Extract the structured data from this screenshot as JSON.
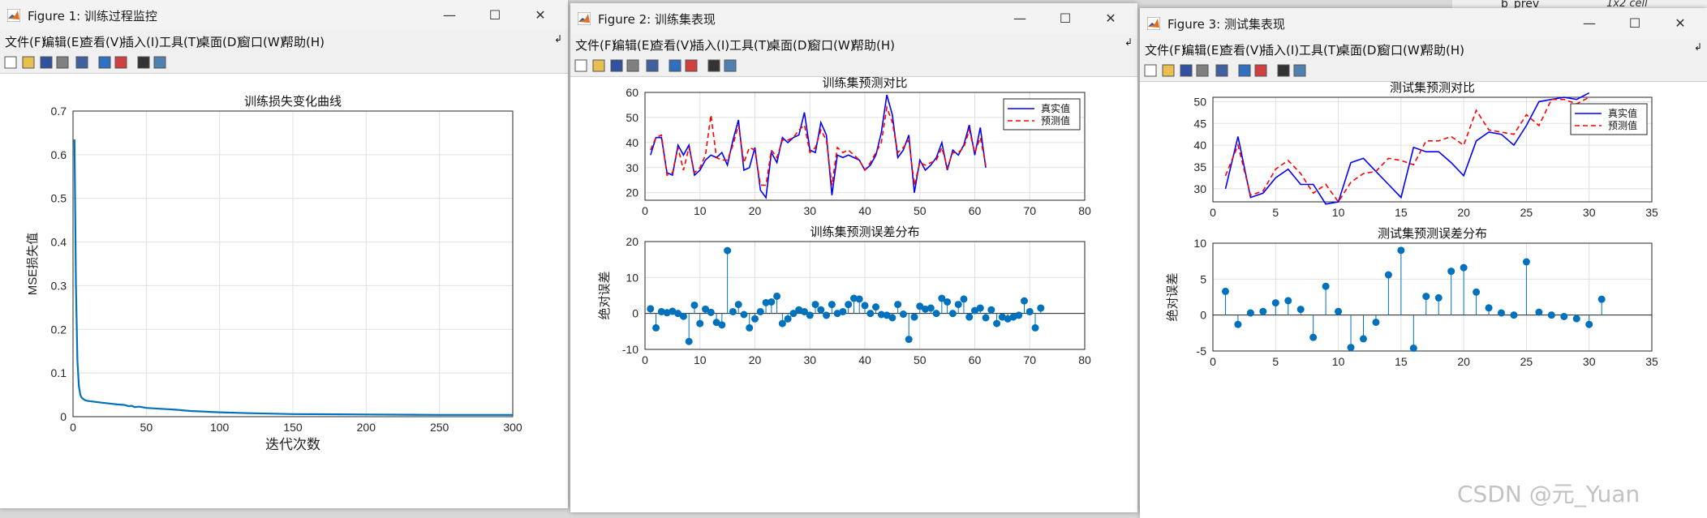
{
  "background": {
    "var_name": "b_prev",
    "var_value": "1x2 cell"
  },
  "watermark": "CSDN @元_Yuan",
  "menu": [
    "文件(F)",
    "编辑(E)",
    "查看(V)",
    "插入(I)",
    "工具(T)",
    "桌面(D)",
    "窗口(W)",
    "帮助(H)"
  ],
  "toolbar_icons": [
    "new-file-icon",
    "open-folder-icon",
    "save-icon",
    "print-icon",
    "link-icon",
    "colorbar-icon",
    "legend-icon",
    "pointer-icon",
    "property-icon"
  ],
  "colors": {
    "series_blue": "#0000ff",
    "series_red": "#ff0000",
    "stem": "#0072bd",
    "grid": "#e0e0e0"
  },
  "windows": [
    {
      "title": "Figure 1: 训练过程监控"
    },
    {
      "title": "Figure 2: 训练集表现"
    },
    {
      "title": "Figure 3: 测试集表现"
    }
  ],
  "chart_data": [
    {
      "type": "line",
      "title": "训练损失变化曲线",
      "xlabel": "迭代次数",
      "ylabel": "MSE损失值",
      "xlim": [
        0,
        300
      ],
      "ylim": [
        0,
        0.7
      ],
      "xticks": [
        0,
        50,
        100,
        150,
        200,
        250,
        300
      ],
      "yticks": [
        0,
        0.1,
        0.2,
        0.3,
        0.4,
        0.5,
        0.6,
        0.7
      ],
      "grid": true,
      "x": [
        1,
        2,
        3,
        4,
        5,
        6,
        8,
        10,
        15,
        20,
        25,
        30,
        35,
        38,
        40,
        42,
        45,
        50,
        60,
        70,
        80,
        100,
        120,
        150,
        200,
        250,
        300
      ],
      "y": [
        0.635,
        0.3,
        0.13,
        0.07,
        0.05,
        0.043,
        0.038,
        0.036,
        0.034,
        0.032,
        0.03,
        0.028,
        0.027,
        0.024,
        0.025,
        0.022,
        0.023,
        0.02,
        0.018,
        0.016,
        0.013,
        0.01,
        0.008,
        0.006,
        0.005,
        0.004,
        0.004
      ]
    },
    {
      "type": "line",
      "title": "训练集预测对比",
      "xlim": [
        0,
        80
      ],
      "ylim": [
        17,
        60
      ],
      "xticks": [
        0,
        10,
        20,
        30,
        40,
        50,
        60,
        70,
        80
      ],
      "yticks": [
        20,
        30,
        40,
        50,
        60
      ],
      "grid": true,
      "legend": "top-right",
      "series": [
        {
          "name": "真实值",
          "style": "solid",
          "values": [
            35,
            42,
            42,
            28,
            27,
            39,
            35,
            39,
            27,
            29,
            33,
            35,
            34,
            36,
            31,
            41,
            49,
            29,
            30,
            38,
            21,
            18,
            36,
            32,
            42,
            40,
            42,
            43,
            52,
            37,
            36,
            48,
            43,
            19,
            35,
            34,
            35,
            34,
            33,
            29,
            31,
            35,
            44,
            59,
            51,
            34,
            37,
            43,
            20,
            33,
            29,
            31,
            34,
            40,
            29,
            37,
            35,
            39,
            47,
            35,
            46,
            30
          ]
        },
        {
          "name": "预测值",
          "style": "dashed",
          "values": [
            37,
            42,
            43,
            27,
            28,
            38,
            29,
            38,
            28,
            30,
            35,
            51,
            34,
            33,
            33,
            39,
            47,
            32,
            38,
            37,
            23,
            23,
            37,
            34,
            41,
            41,
            42,
            45,
            47,
            36,
            38,
            45,
            41,
            23,
            38,
            36,
            37,
            35,
            33,
            29,
            32,
            36,
            40,
            54,
            48,
            36,
            38,
            41,
            23,
            32,
            31,
            32,
            33,
            38,
            30,
            36,
            36,
            38,
            45,
            36,
            42,
            31
          ]
        }
      ]
    },
    {
      "type": "stem",
      "title": "训练集预测误差分布",
      "ylabel": "绝对误差",
      "xlim": [
        0,
        80
      ],
      "ylim": [
        -10,
        20
      ],
      "xticks": [
        0,
        10,
        20,
        30,
        40,
        50,
        60,
        70,
        80
      ],
      "yticks": [
        -10,
        0,
        10,
        20
      ],
      "grid": true,
      "x": [
        1,
        2,
        3,
        4,
        5,
        6,
        7,
        8,
        9,
        10,
        11,
        12,
        13,
        14,
        15,
        16,
        17,
        18,
        19,
        20,
        21,
        22,
        23,
        24,
        25,
        26,
        27,
        28,
        29,
        30,
        31,
        32,
        33,
        34,
        35,
        36,
        37,
        38,
        39,
        40,
        41,
        42,
        43,
        44,
        45,
        46,
        47,
        48,
        49,
        50,
        51,
        52,
        53,
        54,
        55,
        56,
        57,
        58,
        59,
        60,
        61,
        62,
        63,
        64,
        65,
        66,
        67,
        68,
        69,
        70,
        71,
        72
      ],
      "values": [
        1.3,
        -4.0,
        0.5,
        0.2,
        0.6,
        0.0,
        -0.8,
        -7.8,
        2.3,
        -2.8,
        1.2,
        0.3,
        -2.5,
        -3.2,
        17.5,
        0.5,
        2.5,
        -0.3,
        -4.0,
        -1.5,
        0.5,
        3.0,
        3.2,
        4.8,
        -2.8,
        -1.5,
        0.0,
        1.0,
        0.5,
        -0.5,
        2.5,
        1.0,
        -0.5,
        2.5,
        0.0,
        0.5,
        2.5,
        4.2,
        4.0,
        2.2,
        0.0,
        1.8,
        -0.3,
        -0.5,
        -1.2,
        2.5,
        -0.2,
        -7.2,
        -1.0,
        2.0,
        1.2,
        1.5,
        0.0,
        4.2,
        3.2,
        0.0,
        2.5,
        4.0,
        -1.0,
        0.8,
        1.5,
        -1.2,
        1.0,
        -2.8,
        -1.0,
        -1.5,
        -1.0,
        -0.5,
        3.5,
        0.5,
        -4.0,
        1.5
      ]
    },
    {
      "type": "line",
      "title": "测试集预测对比",
      "xlim": [
        0,
        35
      ],
      "ylim": [
        27,
        51
      ],
      "xticks": [
        0,
        5,
        10,
        15,
        20,
        25,
        30,
        35
      ],
      "yticks": [
        30,
        35,
        40,
        45,
        50
      ],
      "grid": true,
      "legend": "top-right",
      "series": [
        {
          "name": "真实值",
          "style": "solid",
          "values": [
            30,
            42,
            28,
            29,
            32.5,
            34.5,
            31,
            31,
            26.5,
            27,
            36,
            37,
            34,
            31,
            28,
            39.5,
            38.5,
            38.5,
            36,
            33,
            41,
            43,
            42.5,
            40,
            44.5,
            50,
            50.5,
            51,
            50.5,
            52
          ]
        },
        {
          "name": "预测值",
          "style": "dashed",
          "values": [
            33,
            40,
            28.5,
            29.5,
            34.5,
            36.5,
            33.5,
            29,
            31,
            27,
            31.5,
            33.5,
            34,
            37,
            36.5,
            35.5,
            41,
            41,
            42,
            40,
            48,
            43.5,
            43,
            42.5,
            47,
            44.5,
            50.5,
            50.5,
            49.5,
            51
          ]
        }
      ]
    },
    {
      "type": "stem",
      "title": "测试集预测误差分布",
      "ylabel": "绝对误差",
      "xlim": [
        0,
        35
      ],
      "ylim": [
        -5,
        10
      ],
      "xticks": [
        0,
        5,
        10,
        15,
        20,
        25,
        30,
        35
      ],
      "yticks": [
        -5,
        0,
        5,
        10
      ],
      "grid": true,
      "x": [
        1,
        2,
        3,
        4,
        5,
        6,
        7,
        8,
        9,
        10,
        11,
        12,
        13,
        14,
        15,
        16,
        17,
        18,
        19,
        20,
        21,
        22,
        23,
        24,
        25,
        26,
        27,
        28,
        29,
        30,
        31
      ],
      "values": [
        3.3,
        -1.3,
        0.3,
        0.5,
        1.7,
        2.0,
        0.8,
        -3.1,
        4.0,
        0.5,
        -4.5,
        -3.3,
        -1.0,
        5.6,
        9.0,
        -4.6,
        2.6,
        2.4,
        6.1,
        6.6,
        3.2,
        1.0,
        0.3,
        0.0,
        7.4,
        0.4,
        0.0,
        -0.2,
        -0.5,
        -1.3,
        2.2
      ]
    }
  ]
}
